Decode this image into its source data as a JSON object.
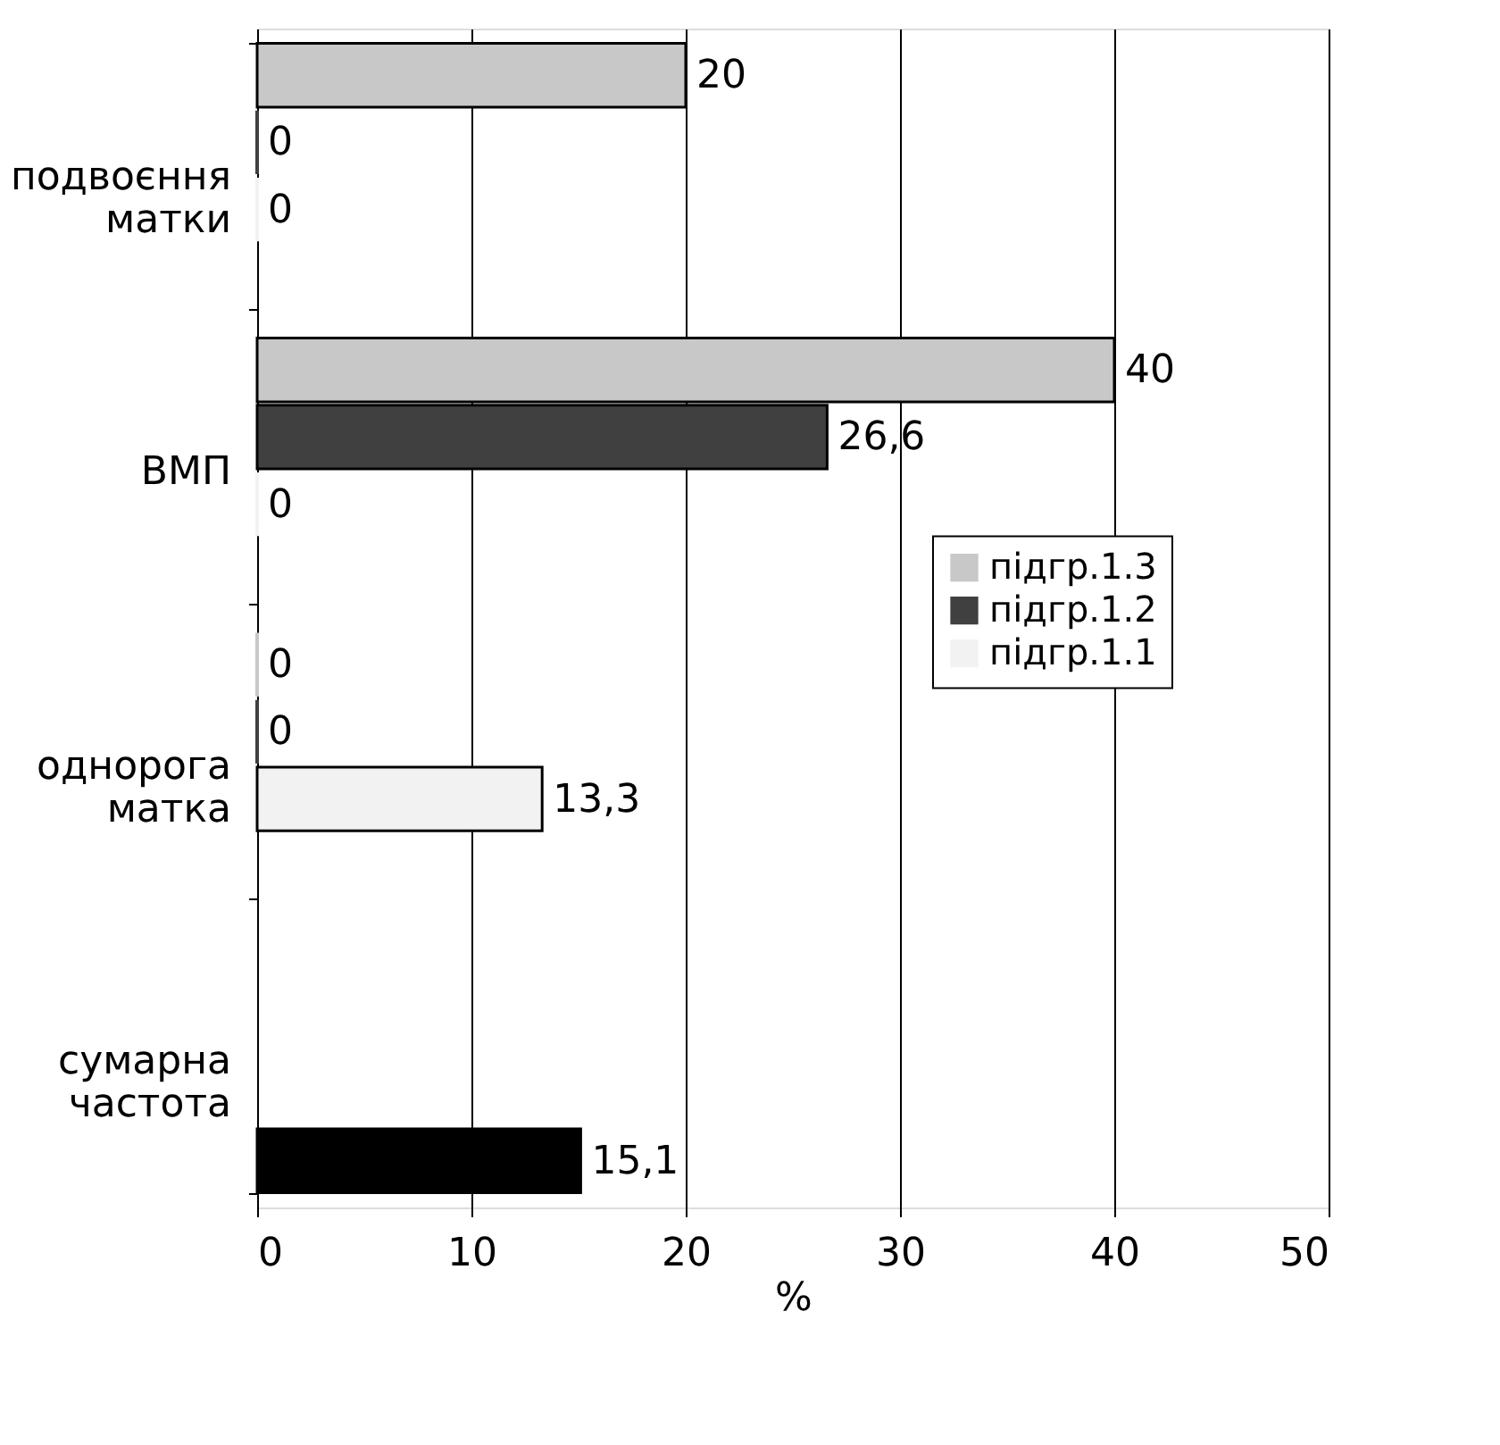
{
  "chart_data": {
    "type": "bar",
    "orientation": "horizontal",
    "xlabel": "%",
    "categories": [
      "подвоєння матки",
      "ВМП",
      "однорога матка",
      "сумарна частота"
    ],
    "series": [
      {
        "name": "підгр.1.3",
        "color": "#c8c8c8",
        "values": [
          20,
          40,
          0,
          null
        ],
        "value_labels": [
          "20",
          "40",
          "0",
          null
        ]
      },
      {
        "name": "підгр.1.2",
        "color": "#404040",
        "values": [
          0,
          26.6,
          0,
          null
        ],
        "value_labels": [
          "0",
          "26,6",
          "0",
          null
        ]
      },
      {
        "name": "підгр.1.1",
        "color": "#f2f2f2",
        "values": [
          0,
          0,
          13.3,
          null
        ],
        "value_labels": [
          "0",
          "0",
          "13,3",
          null
        ]
      },
      {
        "color": "#000000",
        "values": [
          null,
          null,
          null,
          15.1
        ],
        "value_labels": [
          null,
          null,
          null,
          "15,1"
        ]
      }
    ],
    "xlim": [
      0,
      50
    ],
    "xticks": [
      0,
      10,
      20,
      30,
      40,
      50
    ],
    "grid": "x",
    "legend": "right"
  }
}
